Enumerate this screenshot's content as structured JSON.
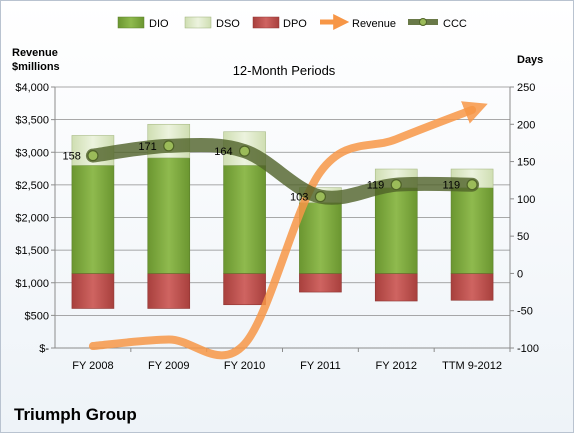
{
  "company": "Triumph Group",
  "chart_data": {
    "type": "bar",
    "title": "12-Month Periods",
    "left_axis_title_line1": "Revenue",
    "left_axis_title_line2": "$millions",
    "right_axis_title": "Days",
    "categories": [
      "FY 2008",
      "FY 2009",
      "FY 2010",
      "FY 2011",
      "FY 2012",
      "TTM 9-2012"
    ],
    "series": [
      {
        "name": "DIO",
        "axis": "days",
        "values": [
          145,
          155,
          145,
          95,
          115,
          115
        ],
        "color": "#77a33a"
      },
      {
        "name": "DSO",
        "axis": "days",
        "values": [
          40,
          45,
          45,
          20,
          25,
          25
        ],
        "color": "#d7e4bd"
      },
      {
        "name": "DPO",
        "axis": "days",
        "values": [
          -47,
          -47,
          -42,
          -25,
          -37,
          -36
        ],
        "color": "#c0504d"
      },
      {
        "name": "Revenue",
        "axis": "revenue",
        "values": [
          30,
          130,
          60,
          2700,
          3200,
          3650
        ],
        "color": "#f79646"
      },
      {
        "name": "CCC",
        "axis": "days",
        "values": [
          158,
          171,
          164,
          103,
          119,
          119
        ],
        "color": "#4f6228"
      }
    ],
    "ccc_labels": [
      "158",
      "171",
      "164",
      "103",
      "119",
      "119"
    ],
    "left_ticks": [
      "$-",
      "$500",
      "$1,000",
      "$1,500",
      "$2,000",
      "$2,500",
      "$3,000",
      "$3,500",
      "$4,000"
    ],
    "right_ticks": [
      "-100",
      "-50",
      "0",
      "50",
      "100",
      "150",
      "200",
      "250"
    ],
    "ylim_revenue": [
      0,
      4000
    ],
    "ylim_days": [
      -100,
      250
    ],
    "legend_position": "top",
    "grid": true
  }
}
